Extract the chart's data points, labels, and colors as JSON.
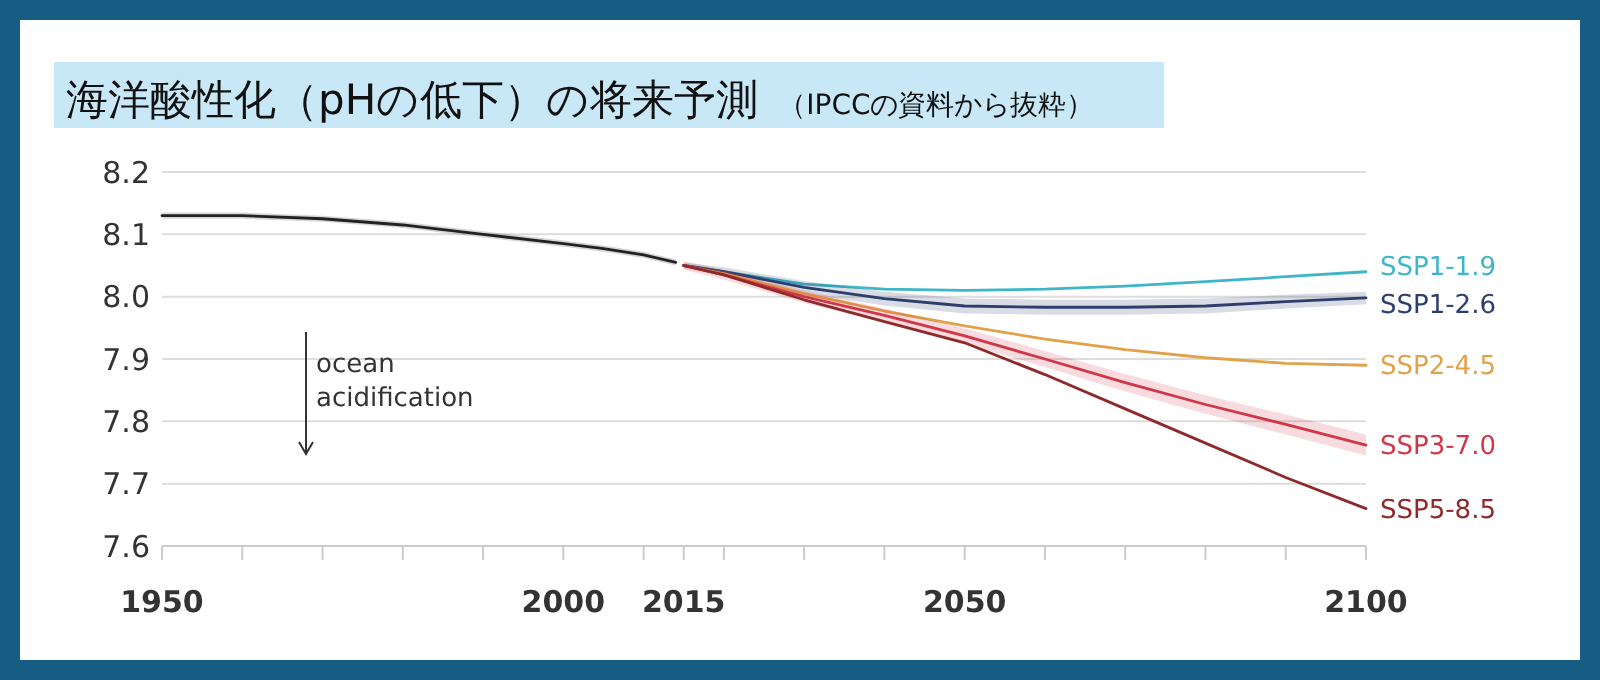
{
  "chart_data": {
    "type": "line",
    "title": "海洋酸性化（pHの低下）の将来予測",
    "subtitle": "（IPCCの資料から抜粋）",
    "annotations": [
      "ocean acidification"
    ],
    "xlim": [
      1950,
      2100
    ],
    "ylim": [
      7.6,
      8.2
    ],
    "xticks": [
      1950,
      {
        "value": 1960,
        "label": null
      },
      {
        "value": 1970,
        "label": null
      },
      {
        "value": 1980,
        "label": null
      },
      {
        "value": 1990,
        "label": null
      },
      2000,
      {
        "value": 2010,
        "label": null
      },
      2015,
      {
        "value": 2020,
        "label": null
      },
      {
        "value": 2030,
        "label": null
      },
      {
        "value": 2040,
        "label": null
      },
      2050,
      {
        "value": 2060,
        "label": null
      },
      {
        "value": 2070,
        "label": null
      },
      {
        "value": 2080,
        "label": null
      },
      {
        "value": 2090,
        "label": null
      },
      2100
    ],
    "yticks": [
      7.6,
      7.7,
      7.8,
      7.9,
      {
        "value": 8,
        "label": "8.0"
      },
      8.1,
      8.2
    ],
    "grid": "y",
    "legend": false,
    "line_style": "solid",
    "series": [
      {
        "color": "#222222",
        "x": [
          1950,
          1960,
          1970,
          1980,
          1990,
          2000,
          2005,
          2010,
          2014
        ],
        "values": [
          8.13,
          8.13,
          8.125,
          8.115,
          8.1,
          8.085,
          8.077,
          8.067,
          8.055
        ],
        "lower": [
          8.125,
          8.125,
          8.12,
          8.11,
          8.095,
          8.08,
          8.072,
          8.062,
          8.05
        ],
        "upper": [
          8.135,
          8.135,
          8.13,
          8.12,
          8.105,
          8.09,
          8.082,
          8.072,
          8.06
        ]
      },
      {
        "name": "SSP1-1.9",
        "color": "#3fb5c8",
        "x": [
          2015,
          2020,
          2030,
          2040,
          2050,
          2060,
          2070,
          2080,
          2090,
          2100
        ],
        "values": [
          8.05,
          8.04,
          8.02,
          8.012,
          8.01,
          8.012,
          8.017,
          8.024,
          8.032,
          8.04
        ]
      },
      {
        "name": "SSP1-2.6",
        "color": "#2c3e6b",
        "x": [
          2015,
          2020,
          2030,
          2040,
          2050,
          2060,
          2070,
          2080,
          2090,
          2100
        ],
        "values": [
          8.05,
          8.04,
          8.015,
          7.997,
          7.985,
          7.983,
          7.983,
          7.985,
          7.992,
          7.998
        ],
        "lower": [
          8.045,
          8.033,
          8.005,
          7.986,
          7.973,
          7.971,
          7.971,
          7.973,
          7.981,
          7.988
        ],
        "upper": [
          8.055,
          8.047,
          8.025,
          8.008,
          7.997,
          7.995,
          7.995,
          7.997,
          8.003,
          8.008
        ]
      },
      {
        "name": "SSP2-4.5",
        "color": "#e0a24a",
        "x": [
          2015,
          2020,
          2030,
          2040,
          2050,
          2060,
          2070,
          2080,
          2090,
          2100
        ],
        "values": [
          8.05,
          8.037,
          8.005,
          7.977,
          7.953,
          7.932,
          7.915,
          7.902,
          7.893,
          7.89
        ]
      },
      {
        "name": "SSP3-7.0",
        "color": "#d0384a",
        "x": [
          2015,
          2020,
          2030,
          2040,
          2050,
          2060,
          2070,
          2080,
          2090,
          2100
        ],
        "values": [
          8.05,
          8.035,
          8.0,
          7.97,
          7.937,
          7.9,
          7.862,
          7.827,
          7.795,
          7.762
        ],
        "lower": [
          8.043,
          8.027,
          7.99,
          7.959,
          7.925,
          7.887,
          7.848,
          7.812,
          7.779,
          7.745
        ],
        "upper": [
          8.057,
          8.043,
          8.01,
          7.981,
          7.949,
          7.913,
          7.876,
          7.842,
          7.811,
          7.779
        ]
      },
      {
        "name": "SSP5-8.5",
        "color": "#8f2a2a",
        "x": [
          2015,
          2020,
          2030,
          2040,
          2050,
          2060,
          2070,
          2080,
          2090,
          2100
        ],
        "values": [
          8.05,
          8.035,
          7.995,
          7.96,
          7.926,
          7.875,
          7.82,
          7.765,
          7.71,
          7.66
        ]
      }
    ]
  }
}
